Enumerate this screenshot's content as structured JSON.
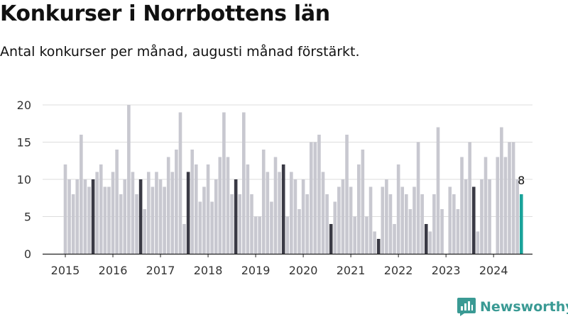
{
  "header": {
    "title": "Konkurser i Norrbottens län",
    "subtitle": "Antal konkurser per månad, augusti månad förstärkt."
  },
  "brand": {
    "name": "Newsworthy",
    "color": "#3a9a94"
  },
  "colors": {
    "normal": "#c8c8d0",
    "august": "#3a3a45",
    "latest": "#1aa39a",
    "grid": "#dddddd",
    "axis": "#222222"
  },
  "chart_data": {
    "type": "bar",
    "title": "Konkurser i Norrbottens län",
    "subtitle": "Antal konkurser per månad, augusti månad förstärkt.",
    "xlabel": "",
    "ylabel": "",
    "ylim": [
      0,
      20
    ],
    "yticks": [
      0,
      5,
      10,
      15,
      20
    ],
    "xtick_labels": [
      "2015",
      "2016",
      "2017",
      "2018",
      "2019",
      "2020",
      "2021",
      "2022",
      "2023",
      "2024"
    ],
    "grid": true,
    "highlight_month": 8,
    "latest_label": "8",
    "start_year": 2015,
    "start_month": 1,
    "values": [
      12,
      10,
      8,
      10,
      16,
      10,
      9,
      10,
      11,
      12,
      9,
      9,
      11,
      14,
      8,
      10,
      20,
      11,
      8,
      10,
      6,
      11,
      9,
      11,
      10,
      9,
      13,
      11,
      14,
      19,
      4,
      11,
      14,
      12,
      7,
      9,
      12,
      7,
      10,
      13,
      19,
      13,
      8,
      10,
      8,
      19,
      12,
      8,
      5,
      5,
      14,
      11,
      7,
      13,
      11,
      12,
      5,
      11,
      10,
      6,
      10,
      8,
      15,
      15,
      16,
      11,
      8,
      4,
      7,
      9,
      10,
      16,
      9,
      5,
      12,
      14,
      5,
      9,
      3,
      2,
      9,
      10,
      8,
      4,
      12,
      9,
      8,
      6,
      9,
      15,
      8,
      4,
      3,
      8,
      17,
      6,
      0,
      9,
      8,
      6,
      13,
      10,
      15,
      9,
      3,
      10,
      13,
      10,
      0,
      13,
      17,
      13,
      15,
      15,
      10,
      8
    ]
  }
}
